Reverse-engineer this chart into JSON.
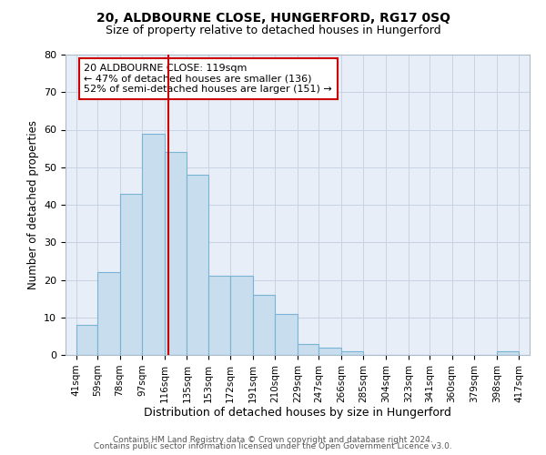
{
  "title": "20, ALDBOURNE CLOSE, HUNGERFORD, RG17 0SQ",
  "subtitle": "Size of property relative to detached houses in Hungerford",
  "xlabel": "Distribution of detached houses by size in Hungerford",
  "ylabel": "Number of detached properties",
  "bar_values": [
    8,
    22,
    43,
    59,
    54,
    48,
    21,
    21,
    16,
    11,
    3,
    2,
    1,
    0,
    0,
    0,
    0,
    0,
    0,
    1
  ],
  "bin_edges": [
    41,
    59,
    78,
    97,
    116,
    135,
    153,
    172,
    191,
    210,
    229,
    247,
    266,
    285,
    304,
    323,
    341,
    360,
    379,
    398,
    417
  ],
  "tick_labels": [
    "41sqm",
    "59sqm",
    "78sqm",
    "97sqm",
    "116sqm",
    "135sqm",
    "153sqm",
    "172sqm",
    "191sqm",
    "210sqm",
    "229sqm",
    "247sqm",
    "266sqm",
    "285sqm",
    "304sqm",
    "323sqm",
    "341sqm",
    "360sqm",
    "379sqm",
    "398sqm",
    "417sqm"
  ],
  "property_size": 119,
  "bar_color": "#c8dded",
  "bar_edge_color": "#7ab4d4",
  "vline_color": "#cc0000",
  "annotation_title": "20 ALDBOURNE CLOSE: 119sqm",
  "annotation_line1": "← 47% of detached houses are smaller (136)",
  "annotation_line2": "52% of semi-detached houses are larger (151) →",
  "annotation_box_facecolor": "#ffffff",
  "annotation_box_edgecolor": "#cc0000",
  "ylim": [
    0,
    80
  ],
  "yticks": [
    0,
    10,
    20,
    30,
    40,
    50,
    60,
    70,
    80
  ],
  "footer1": "Contains HM Land Registry data © Crown copyright and database right 2024.",
  "footer2": "Contains public sector information licensed under the Open Government Licence v3.0.",
  "bg_color": "#ffffff",
  "axes_bg_color": "#e8eef8",
  "grid_color": "#c8d4e4",
  "title_fontsize": 10,
  "subtitle_fontsize": 9,
  "ylabel_fontsize": 8.5,
  "xlabel_fontsize": 9,
  "tick_fontsize": 7.5,
  "ytick_fontsize": 8,
  "ann_fontsize": 8,
  "footer_fontsize": 6.5
}
